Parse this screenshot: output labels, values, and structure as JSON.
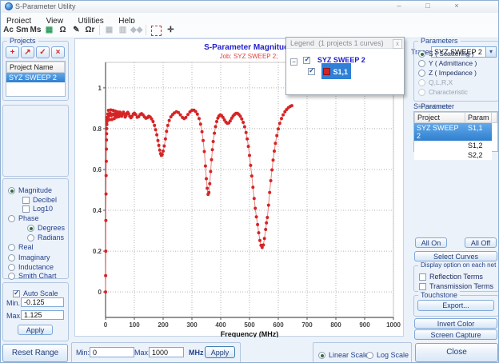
{
  "window": {
    "title": "S-Parameter Utility",
    "minimize": "–",
    "maximize": "□",
    "close": "×"
  },
  "menu": {
    "items": [
      "Project",
      "View",
      "Utilities",
      "Help"
    ]
  },
  "toolbar": {
    "trace_label": "Trace:",
    "trace_value": "SYZ SWEEP 2",
    "dropdown_arrow": "▾",
    "icons": [
      {
        "name": "ac-analysis-icon",
        "glyph": "Ac",
        "disabled": false
      },
      {
        "name": "s-to-m-icon",
        "glyph": "Sm",
        "disabled": false
      },
      {
        "name": "m-to-s-icon",
        "glyph": "Ms",
        "disabled": false
      },
      {
        "name": "spreadsheet-icon",
        "glyph": "▦",
        "color": "#2e9e5b",
        "disabled": false
      },
      {
        "name": "omega-zoom-icon",
        "glyph": "Ω",
        "disabled": false
      },
      {
        "name": "edit-probe-icon",
        "glyph": "✎",
        "disabled": false
      },
      {
        "name": "omega-r-icon",
        "glyph": "Ωr",
        "disabled": false
      },
      {
        "name": "separator",
        "kind": "sep"
      },
      {
        "name": "table-report-icon",
        "glyph": "▦",
        "disabled": true
      },
      {
        "name": "table-report-alt-icon",
        "glyph": "▥",
        "disabled": true
      },
      {
        "name": "move-points-icon",
        "glyph": "◆◆",
        "disabled": true
      },
      {
        "name": "separator",
        "kind": "sep"
      },
      {
        "name": "zoom-region-icon",
        "kind": "dashbox",
        "glyph": "",
        "disabled": false
      },
      {
        "name": "pan-icon",
        "glyph": "✛",
        "disabled": false
      }
    ]
  },
  "projects_panel": {
    "title": "Projects",
    "column_header": "Project Name",
    "rows": [
      "SYZ SWEEP 2"
    ],
    "buttons": [
      {
        "name": "add-project-button",
        "glyph": "+"
      },
      {
        "name": "delete-project-button",
        "glyph": "↗"
      },
      {
        "name": "apply-projects-button",
        "glyph": "✓"
      },
      {
        "name": "close-projects-button",
        "glyph": "×"
      }
    ]
  },
  "display_options": {
    "magnitude": "Magnitude",
    "decibel": "Decibel",
    "log10": "Log10",
    "phase": "Phase",
    "degrees": "Degrees",
    "radians": "Radians",
    "real": "Real",
    "imaginary": "Imaginary",
    "inductance": "Inductance",
    "smith": "Smith Chart"
  },
  "scale_panel": {
    "auto_scale": "Auto Scale",
    "min_label": "Min.",
    "min_value": "-0.125",
    "max_label": "Max.",
    "max_value": "1.125",
    "apply": "Apply"
  },
  "reset_range": "Reset Range",
  "parameters_panel": {
    "title": "Parameters",
    "options": [
      {
        "label": "S ( Scattering )",
        "selected": true,
        "enabled": true
      },
      {
        "label": "Y ( Admittance )",
        "selected": false,
        "enabled": true
      },
      {
        "label": "Z ( Impedance )",
        "selected": false,
        "enabled": true
      },
      {
        "label": "Q,L,R,X",
        "selected": false,
        "enabled": false
      },
      {
        "label": "Characteristic Impedance",
        "selected": false,
        "enabled": false
      }
    ]
  },
  "sparameter_panel": {
    "title": "S-Parameter",
    "columns": [
      "Project",
      "Param"
    ],
    "rows": [
      [
        "SYZ SWEEP 2",
        "S1,1"
      ],
      [
        "",
        "S1,2"
      ],
      [
        "",
        "S2,2"
      ]
    ],
    "all_on": "All On",
    "all_off": "All Off",
    "select_curves": "Select Curves"
  },
  "display_net": {
    "title": "Display option on each net",
    "reflection": "Reflection Terms",
    "transmission": "Transmission Terms"
  },
  "touchstone": {
    "title": "Touchstone",
    "export": "Export..."
  },
  "invert_color": "Invert Color",
  "screen_capture": "Screen Capture",
  "close_button": "Close",
  "freq_bar": {
    "min_label": "Min:",
    "min_value": "0",
    "max_label": "Max:",
    "max_value": "1000",
    "unit": "MHz",
    "apply": "Apply"
  },
  "scale_toggle": {
    "linear": "Linear Scale",
    "log": "Log Scale"
  },
  "legend": {
    "title": "Legend",
    "count": "(1 projects 1 curves)",
    "project": "SYZ SWEEP 2",
    "curve": "S1,1",
    "close": "x",
    "collapse": "−"
  },
  "chart_data": {
    "type": "line",
    "title": "S-Parameter Magnitude",
    "title_color": "#2323c8",
    "subtitle": "Job:  SYZ SWEEP 2;",
    "subtitle_color": "#e04040",
    "xlabel": "Frequency (MHz)",
    "xlim": [
      0,
      1000
    ],
    "ylim": [
      -0.125,
      1.125
    ],
    "xticks": [
      0,
      100,
      200,
      300,
      400,
      500,
      600,
      700,
      800,
      900,
      1000
    ],
    "yticks": [
      0,
      0.2,
      0.4,
      0.6,
      0.8,
      1
    ],
    "grid": true,
    "legend_position": "top-right",
    "series": [
      {
        "name": "S1,1",
        "line_color": "#ea8080",
        "marker_color": "#d62424",
        "points": [
          [
            0,
            0
          ],
          [
            0.4,
            0.08
          ],
          [
            0.8,
            0.2
          ],
          [
            1.2,
            0.35
          ],
          [
            1.6,
            0.48
          ],
          [
            2,
            0.57
          ],
          [
            2.4,
            0.64
          ],
          [
            2.8,
            0.7
          ],
          [
            3.2,
            0.745
          ],
          [
            3.6,
            0.775
          ],
          [
            4,
            0.8
          ],
          [
            4.5,
            0.82
          ],
          [
            5,
            0.835
          ],
          [
            5.5,
            0.847
          ],
          [
            6,
            0.856
          ],
          [
            8,
            0.872
          ],
          [
            10,
            0.89
          ],
          [
            12,
            0.863
          ],
          [
            14,
            0.844
          ],
          [
            16,
            0.875
          ],
          [
            18,
            0.892
          ],
          [
            20,
            0.866
          ],
          [
            22,
            0.845
          ],
          [
            24,
            0.869
          ],
          [
            26,
            0.89
          ],
          [
            28,
            0.871
          ],
          [
            30,
            0.849
          ],
          [
            32,
            0.865
          ],
          [
            34,
            0.886
          ],
          [
            36,
            0.877
          ],
          [
            38,
            0.856
          ],
          [
            40,
            0.865
          ],
          [
            42,
            0.882
          ],
          [
            44,
            0.877
          ],
          [
            46,
            0.859
          ],
          [
            48,
            0.868
          ],
          [
            50,
            0.881
          ],
          [
            53,
            0.873
          ],
          [
            56,
            0.861
          ],
          [
            59,
            0.87
          ],
          [
            62,
            0.881
          ],
          [
            65,
            0.871
          ],
          [
            68,
            0.857
          ],
          [
            71,
            0.864
          ],
          [
            74,
            0.875
          ],
          [
            77,
            0.88
          ],
          [
            80,
            0.873
          ],
          [
            84,
            0.861
          ],
          [
            88,
            0.854
          ],
          [
            92,
            0.86
          ],
          [
            96,
            0.871
          ],
          [
            100,
            0.876
          ],
          [
            105,
            0.869
          ],
          [
            110,
            0.856
          ],
          [
            115,
            0.859
          ],
          [
            120,
            0.869
          ],
          [
            125,
            0.874
          ],
          [
            130,
            0.868
          ],
          [
            135,
            0.858
          ],
          [
            140,
            0.851
          ],
          [
            145,
            0.854
          ],
          [
            150,
            0.861
          ],
          [
            155,
            0.857
          ],
          [
            160,
            0.848
          ],
          [
            165,
            0.835
          ],
          [
            170,
            0.816
          ],
          [
            174,
            0.795
          ],
          [
            178,
            0.77
          ],
          [
            182,
            0.742
          ],
          [
            185,
            0.718
          ],
          [
            188,
            0.695
          ],
          [
            191,
            0.678
          ],
          [
            194,
            0.669
          ],
          [
            197,
            0.674
          ],
          [
            200,
            0.69
          ],
          [
            204,
            0.715
          ],
          [
            208,
            0.75
          ],
          [
            212,
            0.787
          ],
          [
            216,
            0.816
          ],
          [
            221,
            0.84
          ],
          [
            227,
            0.858
          ],
          [
            233,
            0.869
          ],
          [
            239,
            0.877
          ],
          [
            246,
            0.883
          ],
          [
            253,
            0.879
          ],
          [
            260,
            0.868
          ],
          [
            267,
            0.855
          ],
          [
            273,
            0.849
          ],
          [
            279,
            0.855
          ],
          [
            286,
            0.869
          ],
          [
            293,
            0.882
          ],
          [
            300,
            0.89
          ],
          [
            307,
            0.891
          ],
          [
            313,
            0.884
          ],
          [
            319,
            0.871
          ],
          [
            325,
            0.85
          ],
          [
            330,
            0.822
          ],
          [
            335,
            0.785
          ],
          [
            339,
            0.742
          ],
          [
            343,
            0.688
          ],
          [
            347,
            0.617
          ],
          [
            350,
            0.555
          ],
          [
            353,
            0.508
          ],
          [
            356,
            0.478
          ],
          [
            359,
            0.487
          ],
          [
            362,
            0.53
          ],
          [
            365,
            0.59
          ],
          [
            368,
            0.648
          ],
          [
            371,
            0.697
          ],
          [
            374,
            0.737
          ],
          [
            378,
            0.778
          ],
          [
            382,
            0.81
          ],
          [
            386,
            0.835
          ],
          [
            390,
            0.852
          ],
          [
            394,
            0.862
          ],
          [
            398,
            0.867
          ],
          [
            403,
            0.864
          ],
          [
            408,
            0.855
          ],
          [
            413,
            0.843
          ],
          [
            418,
            0.832
          ],
          [
            423,
            0.826
          ],
          [
            428,
            0.828
          ],
          [
            433,
            0.838
          ],
          [
            438,
            0.851
          ],
          [
            443,
            0.862
          ],
          [
            448,
            0.87
          ],
          [
            453,
            0.875
          ],
          [
            458,
            0.875
          ],
          [
            463,
            0.87
          ],
          [
            468,
            0.861
          ],
          [
            473,
            0.848
          ],
          [
            478,
            0.831
          ],
          [
            483,
            0.809
          ],
          [
            488,
            0.781
          ],
          [
            492,
            0.75
          ],
          [
            496,
            0.713
          ],
          [
            500,
            0.669
          ],
          [
            504,
            0.62
          ],
          [
            508,
            0.568
          ],
          [
            512,
            0.513
          ],
          [
            516,
            0.458
          ],
          [
            520,
            0.41
          ],
          [
            524,
            0.368
          ],
          [
            528,
            0.33
          ],
          [
            532,
            0.29
          ],
          [
            536,
            0.252
          ],
          [
            540,
            0.228
          ],
          [
            544,
            0.218
          ],
          [
            548,
            0.23
          ],
          [
            552,
            0.262
          ],
          [
            556,
            0.306
          ],
          [
            559,
            0.338
          ],
          [
            562,
            0.365
          ],
          [
            566,
            0.425
          ],
          [
            570,
            0.487
          ],
          [
            574,
            0.545
          ],
          [
            578,
            0.598
          ],
          [
            582,
            0.646
          ],
          [
            586,
            0.69
          ],
          [
            590,
            0.728
          ],
          [
            595,
            0.766
          ],
          [
            600,
            0.799
          ],
          [
            605,
            0.826
          ],
          [
            611,
            0.85
          ],
          [
            617,
            0.868
          ],
          [
            623,
            0.883
          ],
          [
            629,
            0.894
          ],
          [
            635,
            0.903
          ],
          [
            641,
            0.909
          ],
          [
            647,
            0.913
          ]
        ]
      }
    ]
  }
}
